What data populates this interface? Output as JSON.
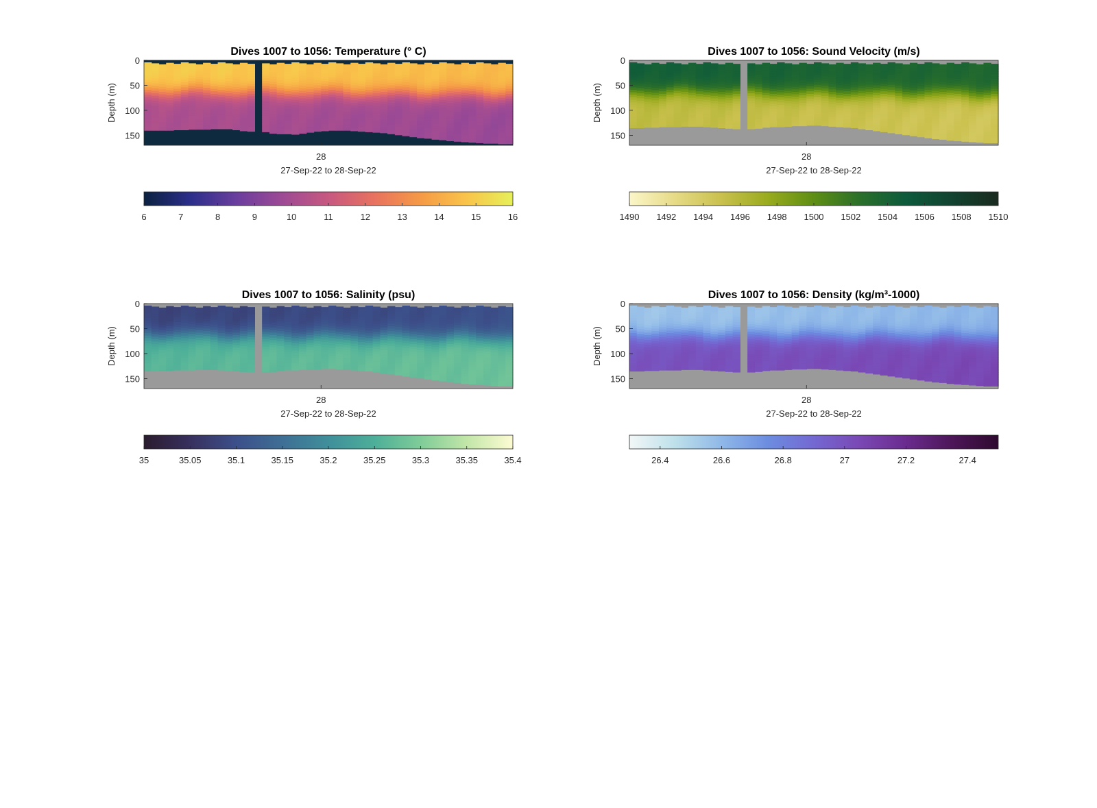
{
  "chart_data": [
    {
      "type": "heatmap",
      "title": "Dives 1007 to 1056: Temperature (° C)",
      "ylabel": "Depth (m)",
      "xlabel": "27-Sep-22 to 28-Sep-22",
      "x_ticks": [
        "28"
      ],
      "y_ticks": [
        0,
        50,
        100,
        150
      ],
      "ylim": [
        0,
        170
      ],
      "colorbar": {
        "ticks": [
          6,
          7,
          8,
          9,
          10,
          11,
          12,
          13,
          14,
          15,
          16
        ],
        "range": [
          6,
          16
        ]
      },
      "colormap": [
        "#0b2140",
        "#2b2e8a",
        "#6a3e9e",
        "#9d4a95",
        "#c75880",
        "#e8725f",
        "#f59a46",
        "#f9c44a",
        "#e6f05a"
      ],
      "nodata_color": "#0d2a3e",
      "profile": {
        "surface": 15.0,
        "thermocline_depth": 60,
        "deep": 10.2
      },
      "n_dives": 50,
      "gap_dive": 15,
      "bottom_depth": [
        140,
        140,
        140,
        140,
        139,
        139,
        138,
        138,
        138,
        137,
        137,
        137,
        139,
        141,
        142,
        145,
        143,
        146,
        147,
        147,
        148,
        146,
        144,
        142,
        141,
        140,
        140,
        140,
        141,
        142,
        143,
        144,
        145,
        147,
        149,
        151,
        153,
        155,
        156,
        158,
        159,
        161,
        162,
        163,
        164,
        165,
        166,
        166,
        167,
        167
      ]
    },
    {
      "type": "heatmap",
      "title": "Dives 1007 to 1056: Sound Velocity (m/s)",
      "ylabel": "Depth (m)",
      "xlabel": "27-Sep-22 to 28-Sep-22",
      "x_ticks": [
        "28"
      ],
      "y_ticks": [
        0,
        50,
        100,
        150
      ],
      "ylim": [
        0,
        170
      ],
      "colorbar": {
        "ticks": [
          1490,
          1492,
          1494,
          1496,
          1498,
          1500,
          1502,
          1504,
          1506,
          1508,
          1510
        ],
        "range": [
          1490,
          1510
        ]
      },
      "colormap": [
        "#fbf6c9",
        "#e6da86",
        "#c9c04d",
        "#99ab1e",
        "#5e8e14",
        "#2a6f2a",
        "#0d5a3c",
        "#124330",
        "#1a2a1f"
      ],
      "nodata_color": "#9a9a9a",
      "profile": {
        "surface": 1504.5,
        "thermocline_depth": 60,
        "deep": 1495.5
      },
      "n_dives": 50,
      "gap_dive": 15,
      "bottom_depth": [
        135,
        135,
        134,
        134,
        133,
        133,
        133,
        132,
        132,
        132,
        133,
        134,
        135,
        136,
        137,
        139,
        137,
        136,
        134,
        133,
        133,
        132,
        131,
        131,
        130,
        130,
        131,
        132,
        133,
        134,
        135,
        137,
        139,
        141,
        143,
        145,
        147,
        149,
        151,
        153,
        155,
        157,
        158,
        160,
        161,
        162,
        163,
        164,
        165,
        165
      ]
    },
    {
      "type": "heatmap",
      "title": "Dives 1007 to 1056: Salinity (psu)",
      "ylabel": "Depth (m)",
      "xlabel": "27-Sep-22 to 28-Sep-22",
      "x_ticks": [
        "28"
      ],
      "y_ticks": [
        0,
        50,
        100,
        150
      ],
      "ylim": [
        0,
        170
      ],
      "colorbar": {
        "ticks": [
          "35",
          "35.05",
          "35.1",
          "35.15",
          "35.2",
          "35.25",
          "35.3",
          "35.35",
          "35.4"
        ],
        "range": [
          35,
          35.4
        ]
      },
      "colormap": [
        "#2a1c2e",
        "#38305e",
        "#3c4f8a",
        "#3e6f95",
        "#3f8f9a",
        "#4daf99",
        "#7fcc98",
        "#c2e6a8",
        "#fdfbd2"
      ],
      "nodata_color": "#9a9a9a",
      "profile": {
        "surface": 35.08,
        "thermocline_depth": 60,
        "deep": 35.26
      },
      "n_dives": 50,
      "gap_dive": 15,
      "bottom_depth": [
        135,
        135,
        134,
        134,
        133,
        133,
        133,
        132,
        132,
        132,
        133,
        134,
        135,
        136,
        137,
        139,
        137,
        136,
        134,
        133,
        133,
        132,
        131,
        131,
        130,
        130,
        131,
        132,
        133,
        134,
        135,
        137,
        139,
        141,
        143,
        145,
        147,
        149,
        151,
        153,
        155,
        157,
        158,
        160,
        161,
        162,
        163,
        164,
        165,
        165
      ]
    },
    {
      "type": "heatmap",
      "title": "Dives 1007 to 1056: Density (kg/m³-1000)",
      "ylabel": "Depth (m)",
      "xlabel": "27-Sep-22 to 28-Sep-22",
      "x_ticks": [
        "28"
      ],
      "y_ticks": [
        0,
        50,
        100,
        150
      ],
      "ylim": [
        0,
        170
      ],
      "colorbar": {
        "ticks": [
          "26.4",
          "26.6",
          "26.8",
          "27",
          "27.2",
          "27.4"
        ],
        "range": [
          26.3,
          27.5
        ]
      },
      "colormap": [
        "#f2f7f7",
        "#bde0ea",
        "#8fb8e8",
        "#6c8de0",
        "#7468d2",
        "#7a48b4",
        "#6a2b8e",
        "#4d1658",
        "#2e0a2e"
      ],
      "nodata_color": "#9a9a9a",
      "profile": {
        "surface": 26.55,
        "thermocline_depth": 60,
        "deep": 27.0
      },
      "n_dives": 50,
      "gap_dive": 15,
      "bottom_depth": [
        135,
        135,
        134,
        134,
        133,
        133,
        133,
        132,
        132,
        132,
        133,
        134,
        135,
        136,
        137,
        139,
        137,
        136,
        134,
        133,
        133,
        132,
        131,
        131,
        130,
        130,
        131,
        132,
        133,
        134,
        135,
        137,
        139,
        141,
        143,
        145,
        147,
        149,
        151,
        153,
        155,
        157,
        158,
        160,
        161,
        162,
        163,
        164,
        165,
        165
      ]
    }
  ]
}
